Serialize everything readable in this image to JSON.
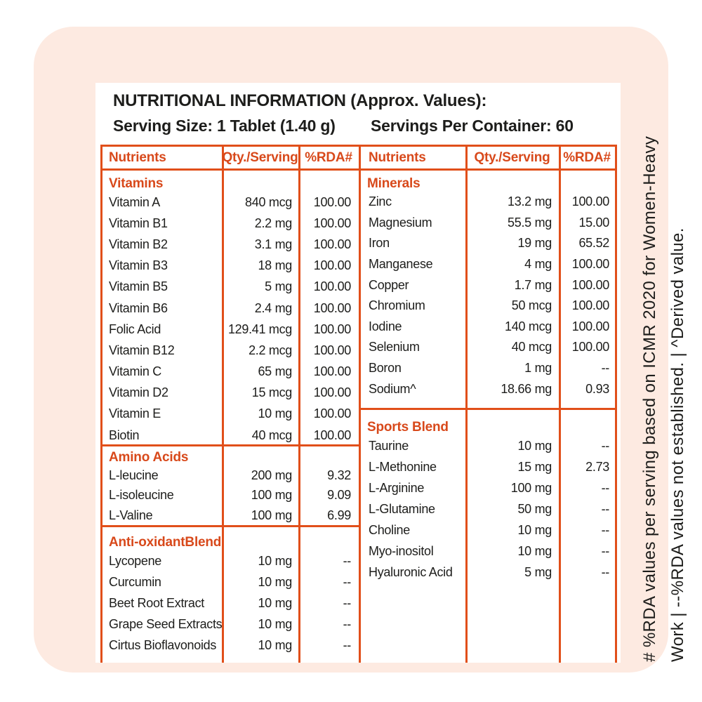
{
  "colors": {
    "accent_text": "#d8491b",
    "accent_border": "#e14f1a",
    "card_bg": "#fdeae1"
  },
  "header": {
    "title": "NUTRITIONAL INFORMATION (Approx. Values):",
    "serving_size": "Serving Size: 1 Tablet (1.40 g)",
    "servings_per_container": "Servings Per Container: 60"
  },
  "columns": [
    "Nutrients",
    "Qty./Serving",
    "%RDA#"
  ],
  "left_sections": [
    {
      "title": "Vitamins",
      "rows": [
        {
          "name": "Vitamin A",
          "qty": "840 mcg",
          "rda": "100.00"
        },
        {
          "name": "Vitamin B1",
          "qty": "2.2 mg",
          "rda": "100.00"
        },
        {
          "name": "Vitamin B2",
          "qty": "3.1 mg",
          "rda": "100.00"
        },
        {
          "name": "Vitamin B3",
          "qty": "18 mg",
          "rda": "100.00"
        },
        {
          "name": "Vitamin B5",
          "qty": "5 mg",
          "rda": "100.00"
        },
        {
          "name": "Vitamin B6",
          "qty": "2.4 mg",
          "rda": "100.00"
        },
        {
          "name": "Folic Acid",
          "qty": "129.41 mcg",
          "rda": "100.00"
        },
        {
          "name": "Vitamin B12",
          "qty": "2.2 mcg",
          "rda": "100.00"
        },
        {
          "name": "Vitamin C",
          "qty": "65 mg",
          "rda": "100.00"
        },
        {
          "name": "Vitamin D2",
          "qty": "15 mcg",
          "rda": "100.00"
        },
        {
          "name": "Vitamin E",
          "qty": "10 mg",
          "rda": "100.00"
        },
        {
          "name": "Biotin",
          "qty": "40 mcg",
          "rda": "100.00"
        }
      ]
    },
    {
      "title": "Amino Acids",
      "rows": [
        {
          "name": "L-leucine",
          "qty": "200 mg",
          "rda": "9.32"
        },
        {
          "name": "L-isoleucine",
          "qty": "100 mg",
          "rda": "9.09"
        },
        {
          "name": "L-Valine",
          "qty": "100 mg",
          "rda": "6.99"
        }
      ]
    },
    {
      "title": "Anti-oxidantBlend",
      "rows": [
        {
          "name": "Lycopene",
          "qty": "10 mg",
          "rda": "--"
        },
        {
          "name": "Curcumin",
          "qty": "10 mg",
          "rda": "--"
        },
        {
          "name": "Beet Root Extract",
          "qty": "10 mg",
          "rda": "--"
        },
        {
          "name": "Grape Seed Extracts",
          "qty": "10 mg",
          "rda": "--"
        },
        {
          "name": "Cirtus Bioflavonoids",
          "qty": "10 mg",
          "rda": "--"
        }
      ]
    }
  ],
  "right_sections": [
    {
      "title": "Minerals",
      "rows": [
        {
          "name": "Zinc",
          "qty": "13.2 mg",
          "rda": "100.00"
        },
        {
          "name": "Magnesium",
          "qty": "55.5 mg",
          "rda": "15.00"
        },
        {
          "name": "Iron",
          "qty": "19 mg",
          "rda": "65.52"
        },
        {
          "name": "Manganese",
          "qty": "4 mg",
          "rda": "100.00"
        },
        {
          "name": "Copper",
          "qty": "1.7 mg",
          "rda": "100.00"
        },
        {
          "name": "Chromium",
          "qty": "50 mcg",
          "rda": "100.00"
        },
        {
          "name": "Iodine",
          "qty": "140 mcg",
          "rda": "100.00"
        },
        {
          "name": "Selenium",
          "qty": "40 mcg",
          "rda": "100.00"
        },
        {
          "name": "Boron",
          "qty": "1 mg",
          "rda": "--"
        },
        {
          "name": "Sodium^",
          "qty": "18.66 mg",
          "rda": "0.93"
        }
      ]
    },
    {
      "title": "Sports Blend",
      "rows": [
        {
          "name": "Taurine",
          "qty": "10 mg",
          "rda": "--"
        },
        {
          "name": "L-Methonine",
          "qty": "15 mg",
          "rda": "2.73"
        },
        {
          "name": "L-Arginine",
          "qty": "100 mg",
          "rda": "--"
        },
        {
          "name": "L-Glutamine",
          "qty": "50 mg",
          "rda": "--"
        },
        {
          "name": "Choline",
          "qty": "10 mg",
          "rda": "--"
        },
        {
          "name": "Myo-inositol",
          "qty": "10 mg",
          "rda": "--"
        },
        {
          "name": "Hyaluronic Acid",
          "qty": "5 mg",
          "rda": "--"
        }
      ]
    }
  ],
  "footnote": {
    "line1": "# %RDA values per serving based on ICMR 2020 for Women-Heavy",
    "line2": "Work | --%RDA values not established. | ^Derived value."
  }
}
